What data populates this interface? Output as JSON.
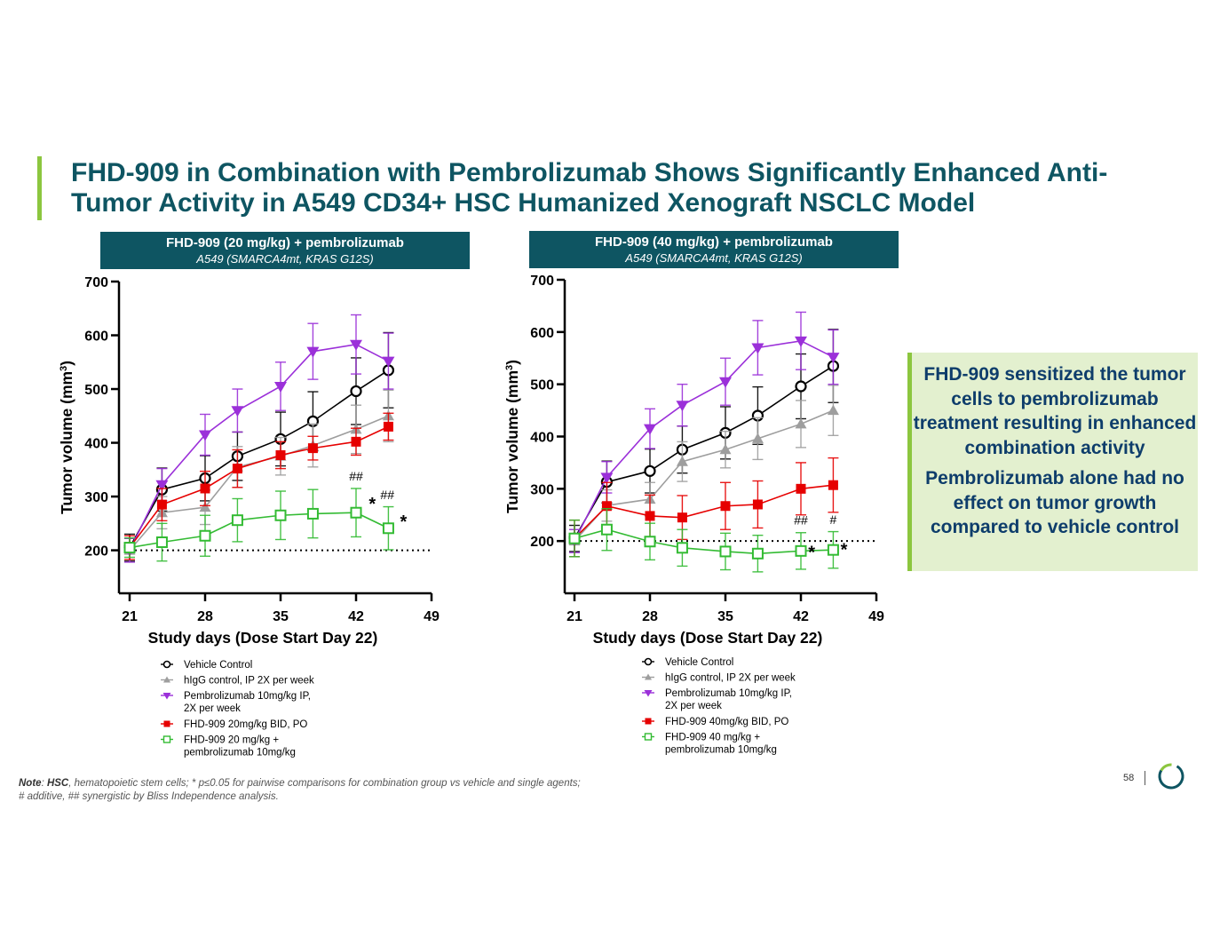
{
  "slide": {
    "title": "FHD-909 in Combination with Pembrolizumab Shows Significantly Enhanced Anti-Tumor Activity in A549 CD34+ HSC Humanized Xenograft NSCLC Model",
    "callout": [
      "FHD-909 sensitized the tumor cells to pembrolizumab treatment resulting in enhanced combination activity",
      "Pembrolizumab alone had no effect on tumor growth compared to vehicle control"
    ],
    "note_label": "Note",
    "note_term": "HSC",
    "note_line1": ", hematopoietic stem cells; * p≤0.05 for pairwise comparisons for combination group vs vehicle and single agents;",
    "note_line2": "# additive, ## synergistic by Bliss Independence analysis.",
    "page_number": "58",
    "colors": {
      "brand_teal": "#0e5562",
      "accent_green": "#8cc63f",
      "callout_bg": "#e3f0cf",
      "callout_text": "#0e3d6b"
    }
  },
  "panels": [
    {
      "header": "FHD-909 (20 mg/kg) + pembrolizumab",
      "subheader": "A549 (SMARCA4mt, KRAS G12S)"
    },
    {
      "header": "FHD-909 (40 mg/kg) + pembrolizumab",
      "subheader": "A549 (SMARCA4mt, KRAS G12S)"
    }
  ],
  "chart_data": [
    {
      "type": "line",
      "xlabel": "Study days (Dose Start Day 22)",
      "ylabel": "Tumor volume (mm3)",
      "xlim": [
        21,
        49
      ],
      "ylim": [
        120,
        700
      ],
      "xticks": [
        21,
        28,
        35,
        42,
        49
      ],
      "yticks": [
        200,
        300,
        400,
        500,
        600,
        700
      ],
      "reference_line": 200,
      "series": [
        {
          "name": "Vehicle Control",
          "color": "#000000",
          "marker": "circle-open",
          "x": [
            21,
            24,
            28,
            31,
            35,
            38,
            42,
            45
          ],
          "y": [
            205,
            313,
            334,
            375,
            407,
            440,
            496,
            535
          ],
          "err": [
            25,
            40,
            42,
            45,
            50,
            55,
            62,
            70
          ]
        },
        {
          "name": "hIgG control, IP 2X per week",
          "color": "#9e9e9e",
          "marker": "triangle-up",
          "x": [
            21,
            24,
            28,
            31,
            35,
            38,
            42,
            45
          ],
          "y": [
            200,
            270,
            280,
            355,
            375,
            395,
            425,
            450
          ],
          "err": [
            22,
            30,
            32,
            38,
            35,
            40,
            45,
            48
          ]
        },
        {
          "name": "Pembrolizumab 10mg/kg IP, 2X per week",
          "color": "#9b30d9",
          "marker": "triangle-down",
          "x": [
            21,
            24,
            28,
            31,
            35,
            38,
            42,
            45
          ],
          "y": [
            200,
            322,
            415,
            460,
            505,
            570,
            583,
            552
          ],
          "err": [
            22,
            30,
            38,
            40,
            45,
            52,
            55,
            52
          ]
        },
        {
          "name": "FHD-909 20mg/kg BID, PO",
          "color": "#e60000",
          "marker": "square",
          "x": [
            21,
            24,
            28,
            31,
            35,
            38,
            42,
            45
          ],
          "y": [
            205,
            285,
            315,
            352,
            377,
            390,
            402,
            430
          ],
          "err": [
            22,
            30,
            32,
            35,
            25,
            22,
            25,
            25
          ]
        },
        {
          "name": "FHD-909 20 mg/kg + pembrolizumab 10mg/kg",
          "color": "#33bb33",
          "marker": "square-open",
          "x": [
            21,
            24,
            28,
            31,
            35,
            38,
            42,
            45
          ],
          "y": [
            205,
            215,
            227,
            256,
            265,
            268,
            270,
            241
          ],
          "err": [
            18,
            35,
            38,
            40,
            45,
            45,
            45,
            40
          ]
        }
      ],
      "annotations": [
        {
          "text": "##",
          "x": 42,
          "y": 330
        },
        {
          "text": "*",
          "x": 43.5,
          "y": 275
        },
        {
          "text": "##",
          "x": 44.9,
          "y": 295
        },
        {
          "text": "*",
          "x": 46.4,
          "y": 242
        }
      ]
    },
    {
      "type": "line",
      "xlabel": "Study days (Dose Start Day 22)",
      "ylabel": "Tumor volume (mm3)",
      "xlim": [
        21,
        49
      ],
      "ylim": [
        100,
        700
      ],
      "xticks": [
        21,
        28,
        35,
        42,
        49
      ],
      "yticks": [
        200,
        300,
        400,
        500,
        600,
        700
      ],
      "reference_line": 200,
      "series": [
        {
          "name": "Vehicle Control",
          "color": "#000000",
          "marker": "circle-open",
          "x": [
            21,
            24,
            28,
            31,
            35,
            38,
            42,
            45
          ],
          "y": [
            205,
            313,
            334,
            375,
            407,
            440,
            496,
            535
          ],
          "err": [
            25,
            40,
            42,
            45,
            50,
            55,
            62,
            70
          ]
        },
        {
          "name": "hIgG control, IP 2X per week",
          "color": "#9e9e9e",
          "marker": "triangle-up",
          "x": [
            21,
            24,
            28,
            31,
            35,
            38,
            42,
            45
          ],
          "y": [
            200,
            268,
            280,
            352,
            375,
            396,
            424,
            450
          ],
          "err": [
            22,
            30,
            32,
            38,
            35,
            40,
            45,
            48
          ]
        },
        {
          "name": "Pembrolizumab 10mg/kg IP, 2X per week",
          "color": "#9b30d9",
          "marker": "triangle-down",
          "x": [
            21,
            24,
            28,
            31,
            35,
            38,
            42,
            45
          ],
          "y": [
            200,
            322,
            415,
            460,
            505,
            570,
            583,
            552
          ],
          "err": [
            22,
            30,
            38,
            40,
            45,
            52,
            55,
            52
          ]
        },
        {
          "name": "FHD-909 40mg/kg BID, PO",
          "color": "#e60000",
          "marker": "square",
          "x": [
            21,
            24,
            28,
            31,
            35,
            38,
            42,
            45
          ],
          "y": [
            205,
            267,
            248,
            245,
            267,
            270,
            300,
            307
          ],
          "err": [
            35,
            45,
            40,
            42,
            45,
            45,
            50,
            52
          ]
        },
        {
          "name": "FHD-909 40 mg/kg + pembrolizumab 10mg/kg",
          "color": "#33bb33",
          "marker": "square-open",
          "x": [
            21,
            24,
            28,
            31,
            35,
            38,
            42,
            45
          ],
          "y": [
            205,
            222,
            199,
            187,
            180,
            176,
            181,
            183
          ],
          "err": [
            35,
            40,
            35,
            35,
            35,
            35,
            35,
            35
          ]
        }
      ],
      "annotations": [
        {
          "text": "##",
          "x": 42,
          "y": 232
        },
        {
          "text": "*",
          "x": 43,
          "y": 167
        },
        {
          "text": "#",
          "x": 45,
          "y": 233
        },
        {
          "text": "*",
          "x": 46,
          "y": 172
        }
      ]
    }
  ]
}
